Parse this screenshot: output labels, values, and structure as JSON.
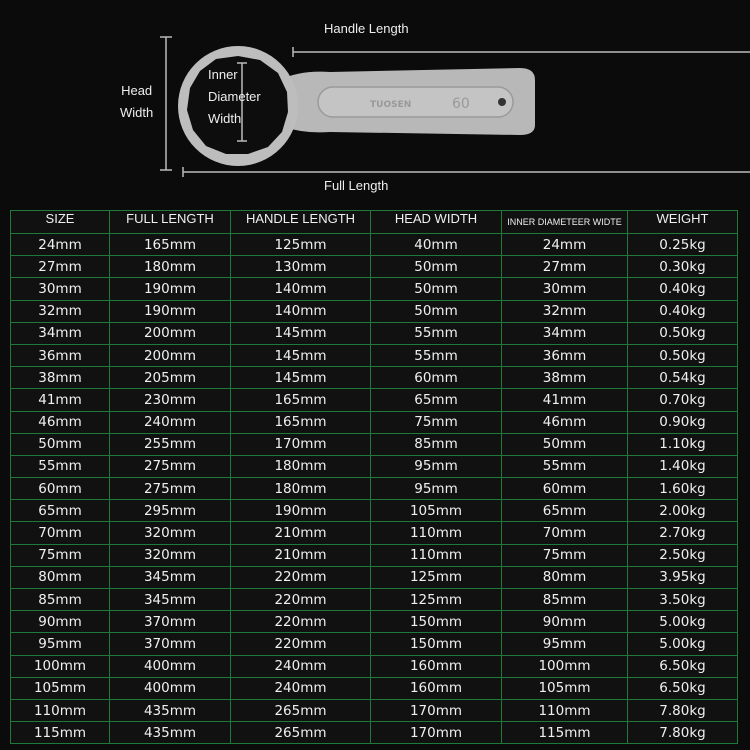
{
  "diagram": {
    "handle_length": "Handle Length",
    "full_length": "Full Length",
    "head_width": [
      "Head",
      "Width"
    ],
    "inner_diameter_width": [
      "Inner",
      "Diameter",
      "Width"
    ],
    "wrench_size_marking": "60"
  },
  "table": {
    "headers": [
      "SIZE",
      "FULL LENGTH",
      "HANDLE LENGTH",
      "HEAD WIDTH",
      "INNER DIAMETEER WIDTE",
      "WEIGHT"
    ],
    "rows": [
      [
        "24mm",
        "165mm",
        "125mm",
        "40mm",
        "24mm",
        "0.25kg"
      ],
      [
        "27mm",
        "180mm",
        "130mm",
        "50mm",
        "27mm",
        "0.30kg"
      ],
      [
        "30mm",
        "190mm",
        "140mm",
        "50mm",
        "30mm",
        "0.40kg"
      ],
      [
        "32mm",
        "190mm",
        "140mm",
        "50mm",
        "32mm",
        "0.40kg"
      ],
      [
        "34mm",
        "200mm",
        "145mm",
        "55mm",
        "34mm",
        "0.50kg"
      ],
      [
        "36mm",
        "200mm",
        "145mm",
        "55mm",
        "36mm",
        "0.50kg"
      ],
      [
        "38mm",
        "205mm",
        "145mm",
        "60mm",
        "38mm",
        "0.54kg"
      ],
      [
        "41mm",
        "230mm",
        "165mm",
        "65mm",
        "41mm",
        "0.70kg"
      ],
      [
        "46mm",
        "240mm",
        "165mm",
        "75mm",
        "46mm",
        "0.90kg"
      ],
      [
        "50mm",
        "255mm",
        "170mm",
        "85mm",
        "50mm",
        "1.10kg"
      ],
      [
        "55mm",
        "275mm",
        "180mm",
        "95mm",
        "55mm",
        "1.40kg"
      ],
      [
        "60mm",
        "275mm",
        "180mm",
        "95mm",
        "60mm",
        "1.60kg"
      ],
      [
        "65mm",
        "295mm",
        "190mm",
        "105mm",
        "65mm",
        "2.00kg"
      ],
      [
        "70mm",
        "320mm",
        "210mm",
        "110mm",
        "70mm",
        "2.70kg"
      ],
      [
        "75mm",
        "320mm",
        "210mm",
        "110mm",
        "75mm",
        "2.50kg"
      ],
      [
        "80mm",
        "345mm",
        "220mm",
        "125mm",
        "80mm",
        "3.95kg"
      ],
      [
        "85mm",
        "345mm",
        "220mm",
        "125mm",
        "85mm",
        "3.50kg"
      ],
      [
        "90mm",
        "370mm",
        "220mm",
        "150mm",
        "90mm",
        "5.00kg"
      ],
      [
        "95mm",
        "370mm",
        "220mm",
        "150mm",
        "95mm",
        "5.00kg"
      ],
      [
        "100mm",
        "400mm",
        "240mm",
        "160mm",
        "100mm",
        "6.50kg"
      ],
      [
        "105mm",
        "400mm",
        "240mm",
        "160mm",
        "105mm",
        "6.50kg"
      ],
      [
        "110mm",
        "435mm",
        "265mm",
        "170mm",
        "110mm",
        "7.80kg"
      ],
      [
        "115mm",
        "435mm",
        "265mm",
        "170mm",
        "115mm",
        "7.80kg"
      ]
    ]
  },
  "colors": {
    "background": "#0b0b0b",
    "grid": "#1f7a3a",
    "text": "#f0f0f0",
    "wrench": "#bdbdbd"
  }
}
